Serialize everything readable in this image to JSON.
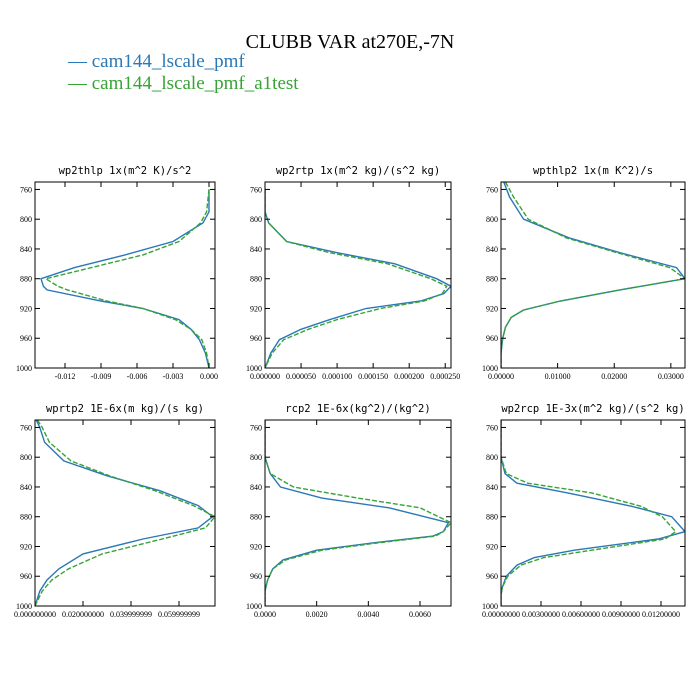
{
  "page_title": "CLUBB VAR at270E,-7N",
  "legend": [
    {
      "label": "— cam144_lscale_pmf",
      "color": "#2a78b7"
    },
    {
      "label": "— cam144_lscale_pmf_a1test",
      "color": "#37a336"
    }
  ],
  "chart_data": [
    {
      "type": "line",
      "title": "wp2thlp  1x(m^2 K)/s^2",
      "xlim": [
        -0.0145,
        0.0005
      ],
      "ylim": [
        1000,
        750
      ],
      "x_ticks": [
        -0.012,
        -0.009,
        -0.006,
        -0.003,
        0.0
      ],
      "x_tick_labels": [
        "-0.012",
        "-0.009",
        "-0.006",
        "-0.003",
        "0.000"
      ],
      "y_ticks": [
        760,
        800,
        840,
        880,
        920,
        960,
        1000
      ],
      "y_tick_labels": [
        "760",
        "800",
        "840",
        "880",
        "920",
        "960",
        "1000"
      ],
      "series": [
        {
          "name": "cam144_lscale_pmf",
          "color": "#2a78b7",
          "dashed": false,
          "x": [
            0.0,
            0.0,
            -0.0005,
            -0.003,
            -0.007,
            -0.0112,
            -0.014,
            -0.0138,
            -0.0135,
            -0.009,
            -0.0055,
            -0.0025,
            -0.0015,
            -0.0008,
            -0.0003,
            0.0
          ],
          "y": [
            760,
            790,
            805,
            830,
            848,
            865,
            880,
            890,
            895,
            910,
            920,
            935,
            948,
            962,
            980,
            1000
          ]
        },
        {
          "name": "cam144_lscale_pmf_a1test",
          "color": "#37a336",
          "dashed": true,
          "x": [
            0.0,
            -0.0002,
            -0.0007,
            -0.0025,
            -0.0055,
            -0.0098,
            -0.0136,
            -0.0126,
            -0.0118,
            -0.0085,
            -0.0055,
            -0.0028,
            -0.0015,
            -0.0006,
            -0.0002,
            0.0
          ],
          "y": [
            760,
            790,
            805,
            830,
            848,
            865,
            880,
            890,
            895,
            910,
            920,
            935,
            948,
            962,
            980,
            1000
          ]
        }
      ]
    },
    {
      "type": "line",
      "title": "wp2rtp  1x(m^2 kg)/(s^2 kg)",
      "xlim": [
        0.0,
        0.000258
      ],
      "ylim": [
        1000,
        750
      ],
      "x_ticks": [
        0.0,
        5e-05,
        0.0001,
        0.00015,
        0.0002,
        0.00025
      ],
      "x_tick_labels": [
        "0.000000",
        "0.000050",
        "0.000100",
        "0.000150",
        "0.000200",
        "0.000250"
      ],
      "y_ticks": [
        760,
        800,
        840,
        880,
        920,
        960,
        1000
      ],
      "y_tick_labels": [
        "760",
        "800",
        "840",
        "880",
        "920",
        "960",
        "1000"
      ],
      "series": [
        {
          "name": "cam144_lscale_pmf",
          "color": "#2a78b7",
          "dashed": false,
          "x": [
            0.0,
            0.0,
            5e-06,
            3e-05,
            0.0001,
            0.00018,
            0.000238,
            0.000258,
            0.000248,
            0.000216,
            0.00014,
            9e-05,
            5e-05,
            2e-05,
            8e-06,
            0.0
          ],
          "y": [
            760,
            790,
            805,
            830,
            845,
            860,
            880,
            890,
            900,
            910,
            920,
            935,
            948,
            962,
            980,
            1000
          ]
        },
        {
          "name": "cam144_lscale_pmf_a1test",
          "color": "#37a336",
          "dashed": true,
          "x": [
            0.0,
            0.0,
            5e-06,
            3e-05,
            9e-05,
            0.00017,
            0.00023,
            0.000252,
            0.000246,
            0.000221,
            0.00016,
            0.0001,
            6e-05,
            2.6e-05,
            1e-05,
            0.0
          ],
          "y": [
            760,
            790,
            805,
            830,
            845,
            860,
            880,
            890,
            900,
            910,
            920,
            935,
            948,
            962,
            980,
            1000
          ]
        }
      ]
    },
    {
      "type": "line",
      "title": "wpthlp2  1x(m K^2)/s",
      "xlim": [
        0.0,
        0.0325
      ],
      "ylim": [
        1000,
        750
      ],
      "x_ticks": [
        0.0,
        0.01,
        0.02,
        0.03
      ],
      "x_tick_labels": [
        "0.00000",
        "0.01000",
        "0.02000",
        "0.03000"
      ],
      "y_ticks": [
        760,
        800,
        840,
        880,
        920,
        960,
        1000
      ],
      "y_tick_labels": [
        "760",
        "800",
        "840",
        "880",
        "920",
        "960",
        "1000"
      ],
      "series": [
        {
          "name": "cam144_lscale_pmf",
          "color": "#2a78b7",
          "dashed": false,
          "x": [
            0.0005,
            0.0015,
            0.004,
            0.012,
            0.021,
            0.031,
            0.0325,
            0.021,
            0.0105,
            0.004,
            0.0018,
            0.0008,
            0.0003,
            0.0,
            0.0
          ],
          "y": [
            750,
            770,
            800,
            825,
            845,
            865,
            880,
            895,
            910,
            922,
            932,
            945,
            960,
            980,
            1000
          ]
        },
        {
          "name": "cam144_lscale_pmf_a1test",
          "color": "#37a336",
          "dashed": true,
          "x": [
            0.0008,
            0.0022,
            0.0048,
            0.0115,
            0.0205,
            0.0298,
            0.0325,
            0.021,
            0.0105,
            0.004,
            0.0018,
            0.0008,
            0.0003,
            0.0,
            0.0
          ],
          "y": [
            750,
            770,
            800,
            825,
            845,
            865,
            880,
            895,
            910,
            922,
            932,
            945,
            960,
            980,
            1000
          ]
        }
      ]
    },
    {
      "type": "line",
      "title": "wprtp2  1E-6x(m kg)/(s kg)",
      "xlim": [
        0.0,
        0.075
      ],
      "ylim": [
        1000,
        750
      ],
      "x_ticks": [
        0.0,
        0.02,
        0.04,
        0.06
      ],
      "x_tick_labels": [
        "0.000000000",
        "0.020000000",
        "0.039999999",
        "0.059999999"
      ],
      "y_ticks": [
        760,
        800,
        840,
        880,
        920,
        960,
        1000
      ],
      "y_tick_labels": [
        "760",
        "800",
        "840",
        "880",
        "920",
        "960",
        "1000"
      ],
      "series": [
        {
          "name": "cam144_lscale_pmf",
          "color": "#2a78b7",
          "dashed": false,
          "x": [
            0.0005,
            0.002,
            0.004,
            0.012,
            0.03,
            0.052,
            0.068,
            0.074,
            0.068,
            0.045,
            0.02,
            0.01,
            0.005,
            0.002,
            0.0
          ],
          "y": [
            750,
            760,
            780,
            805,
            825,
            845,
            865,
            880,
            895,
            910,
            930,
            950,
            965,
            980,
            1000
          ]
        },
        {
          "name": "cam144_lscale_pmf_a1test",
          "color": "#37a336",
          "dashed": true,
          "x": [
            0.001,
            0.003,
            0.006,
            0.015,
            0.031,
            0.05,
            0.066,
            0.075,
            0.071,
            0.053,
            0.028,
            0.014,
            0.007,
            0.003,
            0.0
          ],
          "y": [
            750,
            760,
            780,
            805,
            825,
            845,
            865,
            880,
            895,
            910,
            930,
            950,
            965,
            980,
            1000
          ]
        }
      ]
    },
    {
      "type": "line",
      "title": "rcp2  1E-6x(kg^2)/(kg^2)",
      "xlim": [
        0.0,
        0.0072
      ],
      "ylim": [
        1000,
        750
      ],
      "x_ticks": [
        0.0,
        0.002,
        0.004,
        0.006
      ],
      "x_tick_labels": [
        "0.0000",
        "0.0020",
        "0.0040",
        "0.0060"
      ],
      "y_ticks": [
        760,
        800,
        840,
        880,
        920,
        960,
        1000
      ],
      "y_tick_labels": [
        "760",
        "800",
        "840",
        "880",
        "920",
        "960",
        "1000"
      ],
      "series": [
        {
          "name": "cam144_lscale_pmf",
          "color": "#2a78b7",
          "dashed": false,
          "x": [
            0.0,
            0.0,
            0.0002,
            0.0006,
            0.0022,
            0.0048,
            0.0071,
            0.0069,
            0.0065,
            0.0042,
            0.002,
            0.0007,
            0.0003,
            0.0001,
            0.0,
            0.0
          ],
          "y": [
            750,
            800,
            822,
            840,
            855,
            868,
            888,
            900,
            906,
            915,
            925,
            938,
            950,
            965,
            980,
            1000
          ]
        },
        {
          "name": "cam144_lscale_pmf_a1test",
          "color": "#37a336",
          "dashed": true,
          "x": [
            0.0,
            0.0,
            0.0002,
            0.0011,
            0.0036,
            0.006,
            0.0072,
            0.0069,
            0.0066,
            0.0044,
            0.0022,
            0.0008,
            0.0003,
            0.0001,
            0.0,
            0.0
          ],
          "y": [
            750,
            800,
            822,
            840,
            855,
            868,
            888,
            900,
            906,
            915,
            925,
            938,
            950,
            965,
            980,
            1000
          ]
        }
      ]
    },
    {
      "type": "line",
      "title": "wp2rcp  1E-3x(m^2 kg)/(s^2 kg)",
      "xlim": [
        0.0,
        0.0138
      ],
      "ylim": [
        1000,
        750
      ],
      "x_ticks": [
        0.0,
        0.003,
        0.006,
        0.009,
        0.012
      ],
      "x_tick_labels": [
        "0.00000000",
        "0.00300000",
        "0.00600000",
        "0.00900000",
        "0.01200000"
      ],
      "y_ticks": [
        760,
        800,
        840,
        880,
        920,
        960,
        1000
      ],
      "y_tick_labels": [
        "760",
        "800",
        "840",
        "880",
        "920",
        "960",
        "1000"
      ],
      "series": [
        {
          "name": "cam144_lscale_pmf",
          "color": "#2a78b7",
          "dashed": false,
          "x": [
            0.0,
            0.0,
            0.0003,
            0.0012,
            0.005,
            0.0098,
            0.0128,
            0.0138,
            0.0118,
            0.0055,
            0.0025,
            0.0012,
            0.0004,
            0.0001,
            0.0,
            0.0
          ],
          "y": [
            750,
            800,
            822,
            835,
            848,
            866,
            880,
            900,
            910,
            925,
            935,
            945,
            960,
            975,
            985,
            1000
          ]
        },
        {
          "name": "cam144_lscale_pmf_a1test",
          "color": "#37a336",
          "dashed": true,
          "x": [
            0.0,
            0.0,
            0.0004,
            0.002,
            0.0068,
            0.0105,
            0.0121,
            0.0131,
            0.0123,
            0.0068,
            0.0032,
            0.0015,
            0.0005,
            0.0001,
            0.0,
            0.0
          ],
          "y": [
            750,
            800,
            822,
            835,
            848,
            866,
            880,
            900,
            910,
            925,
            935,
            945,
            960,
            975,
            985,
            1000
          ]
        }
      ]
    }
  ]
}
